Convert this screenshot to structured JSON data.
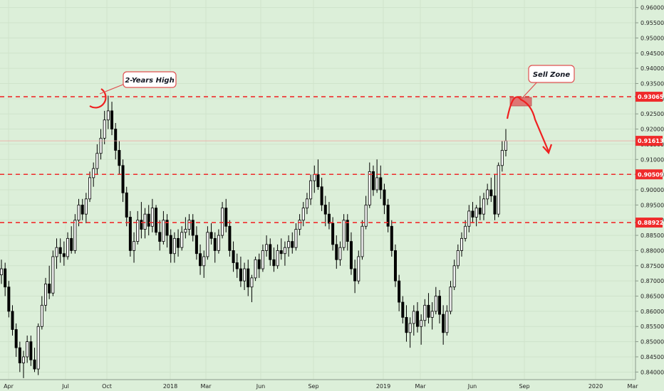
{
  "chart_data": {
    "type": "candlestick",
    "y_axis_ticks": [
      "0.96000",
      "0.95500",
      "0.95000",
      "0.94500",
      "0.94000",
      "0.93500",
      "0.93000",
      "0.92500",
      "0.92000",
      "0.91500",
      "0.91000",
      "0.90500",
      "0.90000",
      "0.89500",
      "0.89000",
      "0.88500",
      "0.88000",
      "0.87500",
      "0.87000",
      "0.86500",
      "0.86000",
      "0.85500",
      "0.85000",
      "0.84500",
      "0.84000"
    ],
    "ylim": [
      0.8375,
      0.9625
    ],
    "x_axis_labels": [
      "Apr",
      "Jul",
      "Oct",
      "2018",
      "Mar",
      "Jun",
      "Sep",
      "2019",
      "Mar",
      "Jun",
      "Sep",
      "2020",
      "Mar"
    ],
    "levels": [
      {
        "value": 0.93065,
        "label": "0.93065",
        "style": "dashed",
        "color": "#ef2b2b"
      },
      {
        "value": 0.90509,
        "label": "0.90509",
        "style": "dashed",
        "color": "#ef2b2b"
      },
      {
        "value": 0.88922,
        "label": "0.88922",
        "style": "dashed",
        "color": "#ef2b2b"
      }
    ],
    "current_price": {
      "value": 0.91613,
      "label": "0.91613",
      "color": "#ef2b2b"
    },
    "annotations": [
      {
        "text": "2-Years High"
      },
      {
        "text": "Sell Zone"
      }
    ],
    "candles": [
      [
        0.872,
        0.877,
        0.869,
        0.874
      ],
      [
        0.874,
        0.876,
        0.865,
        0.868
      ],
      [
        0.868,
        0.87,
        0.858,
        0.86
      ],
      [
        0.86,
        0.862,
        0.852,
        0.854
      ],
      [
        0.854,
        0.856,
        0.845,
        0.848
      ],
      [
        0.848,
        0.85,
        0.84,
        0.843
      ],
      [
        0.843,
        0.847,
        0.838,
        0.845
      ],
      [
        0.845,
        0.852,
        0.843,
        0.85
      ],
      [
        0.85,
        0.852,
        0.842,
        0.844
      ],
      [
        0.844,
        0.848,
        0.84,
        0.841
      ],
      [
        0.841,
        0.856,
        0.839,
        0.855
      ],
      [
        0.855,
        0.865,
        0.854,
        0.862
      ],
      [
        0.862,
        0.871,
        0.86,
        0.869
      ],
      [
        0.869,
        0.875,
        0.864,
        0.866
      ],
      [
        0.866,
        0.88,
        0.865,
        0.878
      ],
      [
        0.878,
        0.884,
        0.874,
        0.881
      ],
      [
        0.881,
        0.884,
        0.876,
        0.879
      ],
      [
        0.879,
        0.883,
        0.875,
        0.878
      ],
      [
        0.878,
        0.886,
        0.877,
        0.884
      ],
      [
        0.884,
        0.888,
        0.879,
        0.88
      ],
      [
        0.88,
        0.892,
        0.879,
        0.89
      ],
      [
        0.89,
        0.897,
        0.888,
        0.895
      ],
      [
        0.895,
        0.897,
        0.89,
        0.892
      ],
      [
        0.892,
        0.899,
        0.889,
        0.897
      ],
      [
        0.897,
        0.906,
        0.896,
        0.904
      ],
      [
        0.904,
        0.909,
        0.901,
        0.907
      ],
      [
        0.907,
        0.915,
        0.905,
        0.912
      ],
      [
        0.912,
        0.92,
        0.91,
        0.917
      ],
      [
        0.917,
        0.926,
        0.915,
        0.923
      ],
      [
        0.923,
        0.931,
        0.92,
        0.926
      ],
      [
        0.926,
        0.929,
        0.918,
        0.92
      ],
      [
        0.92,
        0.922,
        0.91,
        0.913
      ],
      [
        0.913,
        0.916,
        0.905,
        0.908
      ],
      [
        0.908,
        0.91,
        0.896,
        0.899
      ],
      [
        0.899,
        0.901,
        0.888,
        0.891
      ],
      [
        0.891,
        0.893,
        0.878,
        0.88
      ],
      [
        0.88,
        0.886,
        0.876,
        0.883
      ],
      [
        0.883,
        0.893,
        0.882,
        0.89
      ],
      [
        0.89,
        0.896,
        0.884,
        0.887
      ],
      [
        0.887,
        0.894,
        0.884,
        0.892
      ],
      [
        0.892,
        0.895,
        0.885,
        0.888
      ],
      [
        0.888,
        0.897,
        0.886,
        0.894
      ],
      [
        0.894,
        0.895,
        0.885,
        0.886
      ],
      [
        0.886,
        0.89,
        0.88,
        0.883
      ],
      [
        0.883,
        0.893,
        0.882,
        0.89
      ],
      [
        0.89,
        0.892,
        0.881,
        0.885
      ],
      [
        0.885,
        0.887,
        0.876,
        0.879
      ],
      [
        0.879,
        0.886,
        0.876,
        0.884
      ],
      [
        0.884,
        0.887,
        0.878,
        0.881
      ],
      [
        0.881,
        0.888,
        0.88,
        0.886
      ],
      [
        0.886,
        0.891,
        0.884,
        0.887
      ],
      [
        0.887,
        0.892,
        0.885,
        0.89
      ],
      [
        0.89,
        0.892,
        0.883,
        0.885
      ],
      [
        0.885,
        0.888,
        0.877,
        0.879
      ],
      [
        0.879,
        0.882,
        0.872,
        0.875
      ],
      [
        0.875,
        0.88,
        0.871,
        0.878
      ],
      [
        0.878,
        0.888,
        0.877,
        0.886
      ],
      [
        0.886,
        0.889,
        0.882,
        0.884
      ],
      [
        0.884,
        0.886,
        0.876,
        0.88
      ],
      [
        0.88,
        0.887,
        0.879,
        0.885
      ],
      [
        0.885,
        0.896,
        0.884,
        0.894
      ],
      [
        0.894,
        0.897,
        0.886,
        0.888
      ],
      [
        0.888,
        0.89,
        0.878,
        0.88
      ],
      [
        0.88,
        0.883,
        0.873,
        0.876
      ],
      [
        0.876,
        0.879,
        0.871,
        0.874
      ],
      [
        0.874,
        0.878,
        0.868,
        0.87
      ],
      [
        0.87,
        0.876,
        0.867,
        0.874
      ],
      [
        0.874,
        0.877,
        0.865,
        0.868
      ],
      [
        0.868,
        0.872,
        0.863,
        0.871
      ],
      [
        0.871,
        0.878,
        0.87,
        0.877
      ],
      [
        0.877,
        0.879,
        0.871,
        0.874
      ],
      [
        0.874,
        0.882,
        0.873,
        0.88
      ],
      [
        0.88,
        0.885,
        0.878,
        0.882
      ],
      [
        0.882,
        0.884,
        0.875,
        0.877
      ],
      [
        0.877,
        0.881,
        0.873,
        0.875
      ],
      [
        0.875,
        0.882,
        0.874,
        0.88
      ],
      [
        0.88,
        0.884,
        0.877,
        0.879
      ],
      [
        0.879,
        0.883,
        0.875,
        0.881
      ],
      [
        0.881,
        0.885,
        0.878,
        0.883
      ],
      [
        0.883,
        0.886,
        0.879,
        0.881
      ],
      [
        0.881,
        0.889,
        0.88,
        0.887
      ],
      [
        0.887,
        0.892,
        0.885,
        0.89
      ],
      [
        0.89,
        0.896,
        0.888,
        0.894
      ],
      [
        0.894,
        0.899,
        0.892,
        0.897
      ],
      [
        0.897,
        0.905,
        0.895,
        0.903
      ],
      [
        0.903,
        0.908,
        0.899,
        0.905
      ],
      [
        0.905,
        0.91,
        0.9,
        0.901
      ],
      [
        0.901,
        0.904,
        0.893,
        0.895
      ],
      [
        0.895,
        0.898,
        0.888,
        0.892
      ],
      [
        0.892,
        0.896,
        0.887,
        0.889
      ],
      [
        0.889,
        0.891,
        0.88,
        0.882
      ],
      [
        0.882,
        0.885,
        0.874,
        0.877
      ],
      [
        0.877,
        0.883,
        0.875,
        0.881
      ],
      [
        0.881,
        0.892,
        0.88,
        0.89
      ],
      [
        0.89,
        0.892,
        0.88,
        0.883
      ],
      [
        0.883,
        0.886,
        0.872,
        0.874
      ],
      [
        0.874,
        0.877,
        0.866,
        0.87
      ],
      [
        0.87,
        0.88,
        0.869,
        0.878
      ],
      [
        0.878,
        0.89,
        0.877,
        0.888
      ],
      [
        0.888,
        0.898,
        0.887,
        0.895
      ],
      [
        0.895,
        0.909,
        0.894,
        0.906
      ],
      [
        0.906,
        0.908,
        0.898,
        0.9
      ],
      [
        0.9,
        0.91,
        0.899,
        0.904
      ],
      [
        0.904,
        0.908,
        0.897,
        0.9
      ],
      [
        0.9,
        0.902,
        0.892,
        0.895
      ],
      [
        0.895,
        0.897,
        0.886,
        0.888
      ],
      [
        0.888,
        0.89,
        0.878,
        0.88
      ],
      [
        0.88,
        0.882,
        0.868,
        0.87
      ],
      [
        0.87,
        0.872,
        0.86,
        0.863
      ],
      [
        0.863,
        0.865,
        0.856,
        0.858
      ],
      [
        0.858,
        0.862,
        0.85,
        0.853
      ],
      [
        0.853,
        0.858,
        0.848,
        0.856
      ],
      [
        0.856,
        0.862,
        0.852,
        0.86
      ],
      [
        0.86,
        0.863,
        0.853,
        0.855
      ],
      [
        0.855,
        0.859,
        0.849,
        0.857
      ],
      [
        0.857,
        0.864,
        0.855,
        0.862
      ],
      [
        0.862,
        0.866,
        0.856,
        0.858
      ],
      [
        0.858,
        0.863,
        0.854,
        0.86
      ],
      [
        0.86,
        0.868,
        0.859,
        0.865
      ],
      [
        0.865,
        0.867,
        0.856,
        0.859
      ],
      [
        0.859,
        0.862,
        0.849,
        0.853
      ],
      [
        0.853,
        0.862,
        0.852,
        0.86
      ],
      [
        0.86,
        0.87,
        0.859,
        0.868
      ],
      [
        0.868,
        0.877,
        0.867,
        0.875
      ],
      [
        0.875,
        0.882,
        0.874,
        0.88
      ],
      [
        0.88,
        0.886,
        0.878,
        0.884
      ],
      [
        0.884,
        0.89,
        0.883,
        0.888
      ],
      [
        0.888,
        0.895,
        0.886,
        0.893
      ],
      [
        0.893,
        0.896,
        0.889,
        0.891
      ],
      [
        0.891,
        0.895,
        0.888,
        0.894
      ],
      [
        0.894,
        0.898,
        0.89,
        0.892
      ],
      [
        0.892,
        0.899,
        0.89,
        0.897
      ],
      [
        0.897,
        0.902,
        0.895,
        0.9
      ],
      [
        0.9,
        0.904,
        0.896,
        0.898
      ],
      [
        0.898,
        0.905,
        0.89,
        0.892
      ],
      [
        0.892,
        0.909,
        0.891,
        0.908
      ],
      [
        0.908,
        0.916,
        0.906,
        0.913
      ],
      [
        0.913,
        0.92,
        0.911,
        0.9161
      ]
    ]
  }
}
